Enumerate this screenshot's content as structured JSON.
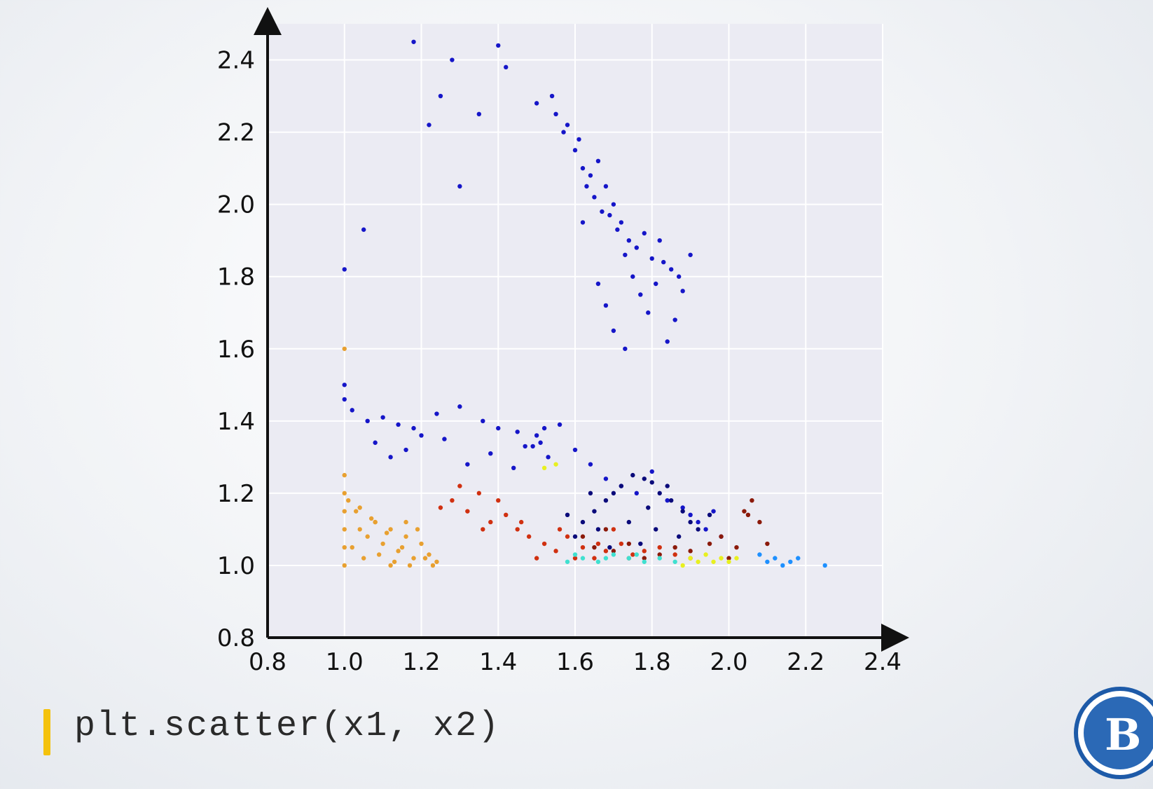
{
  "code_caption": "plt.scatter(x1, x2)",
  "colors": {
    "plot_background": "#ebebf3",
    "axis": "#111111",
    "code_accent": "#f4c20d",
    "logo_blue": "#2b69b6"
  },
  "icons": {
    "logo": "hse-logo-icon"
  },
  "chart_data": {
    "type": "scatter",
    "title": "",
    "xlabel": "",
    "ylabel": "",
    "xlim": [
      0.8,
      2.4
    ],
    "ylim": [
      0.8,
      2.5
    ],
    "xticks": [
      "0.8",
      "1.0",
      "1.2",
      "1.4",
      "1.6",
      "1.8",
      "2.0",
      "2.2",
      "2.4"
    ],
    "yticks": [
      "0.8",
      "1.0",
      "1.2",
      "1.4",
      "1.6",
      "1.8",
      "2.0",
      "2.2",
      "2.4"
    ],
    "grid": true,
    "legend": "none",
    "series": [
      {
        "color": "#1515c8",
        "x": [
          1.5,
          1.55,
          1.58,
          1.6,
          1.62,
          1.64,
          1.66,
          1.68,
          1.7,
          1.72,
          1.74,
          1.76,
          1.78,
          1.8,
          1.82,
          1.85,
          1.54,
          1.57,
          1.61,
          1.63,
          1.65,
          1.67,
          1.69,
          1.71,
          1.73,
          1.75,
          1.77,
          1.79,
          1.81,
          1.83,
          1.87,
          1.9,
          1.88,
          1.86,
          1.84,
          1.73,
          1.7,
          1.68,
          1.66,
          1.62,
          1.25,
          1.3,
          1.18,
          1.22,
          1.35,
          1.42,
          1.28,
          1.4,
          1.05,
          1.0,
          1.0,
          1.0,
          1.02,
          1.06,
          1.1,
          1.14,
          1.18,
          1.2,
          1.24,
          1.3,
          1.36,
          1.4,
          1.45,
          1.5,
          1.51,
          1.52,
          1.49,
          1.56,
          1.6,
          1.64,
          1.68,
          1.72,
          1.76,
          1.8,
          1.84,
          1.88,
          1.9,
          1.92,
          1.94,
          1.96,
          1.98,
          1.12,
          1.08,
          1.16,
          1.26,
          1.32,
          1.38,
          1.44,
          1.47,
          1.53
        ],
        "y": [
          2.28,
          2.25,
          2.22,
          2.15,
          2.1,
          2.08,
          2.12,
          2.05,
          2.0,
          1.95,
          1.9,
          1.88,
          1.92,
          1.85,
          1.9,
          1.82,
          2.3,
          2.2,
          2.18,
          2.05,
          2.02,
          1.98,
          1.97,
          1.93,
          1.86,
          1.8,
          1.75,
          1.7,
          1.78,
          1.84,
          1.8,
          1.86,
          1.76,
          1.68,
          1.62,
          1.6,
          1.65,
          1.72,
          1.78,
          1.95,
          2.3,
          2.05,
          2.45,
          2.22,
          2.25,
          2.38,
          2.4,
          2.44,
          1.93,
          1.82,
          1.5,
          1.46,
          1.43,
          1.4,
          1.41,
          1.39,
          1.38,
          1.36,
          1.42,
          1.44,
          1.4,
          1.38,
          1.37,
          1.36,
          1.34,
          1.38,
          1.33,
          1.39,
          1.32,
          1.28,
          1.24,
          1.22,
          1.2,
          1.26,
          1.18,
          1.16,
          1.14,
          1.12,
          1.1,
          1.15,
          1.08,
          1.3,
          1.34,
          1.32,
          1.35,
          1.28,
          1.31,
          1.27,
          1.33,
          1.3
        ]
      },
      {
        "color": "#0a0a7a",
        "x": [
          1.62,
          1.65,
          1.68,
          1.7,
          1.72,
          1.75,
          1.78,
          1.8,
          1.82,
          1.85,
          1.88,
          1.6,
          1.66,
          1.74,
          1.79,
          1.84,
          1.69,
          1.77,
          1.81,
          1.87,
          1.9,
          1.92,
          1.95,
          1.58,
          1.64
        ],
        "y": [
          1.12,
          1.15,
          1.18,
          1.2,
          1.22,
          1.25,
          1.24,
          1.23,
          1.2,
          1.18,
          1.15,
          1.08,
          1.1,
          1.12,
          1.16,
          1.22,
          1.05,
          1.06,
          1.1,
          1.08,
          1.12,
          1.1,
          1.14,
          1.14,
          1.2
        ]
      },
      {
        "color": "#d03010",
        "x": [
          1.25,
          1.28,
          1.32,
          1.35,
          1.38,
          1.42,
          1.45,
          1.48,
          1.52,
          1.55,
          1.58,
          1.62,
          1.65,
          1.68,
          1.72,
          1.75,
          1.3,
          1.36,
          1.4,
          1.46,
          1.5,
          1.56,
          1.6,
          1.66,
          1.7,
          1.74,
          1.78,
          1.82,
          1.86,
          1.9
        ],
        "y": [
          1.16,
          1.18,
          1.15,
          1.2,
          1.12,
          1.14,
          1.1,
          1.08,
          1.06,
          1.04,
          1.08,
          1.05,
          1.02,
          1.04,
          1.06,
          1.03,
          1.22,
          1.1,
          1.18,
          1.12,
          1.02,
          1.1,
          1.02,
          1.06,
          1.1,
          1.02,
          1.04,
          1.05,
          1.03,
          1.02
        ]
      },
      {
        "color": "#8b1a0a",
        "x": [
          1.62,
          1.65,
          1.68,
          1.7,
          1.74,
          1.78,
          1.82,
          1.86,
          1.9,
          1.95,
          1.98,
          2.02,
          2.05,
          2.08,
          2.1,
          2.04,
          2.06,
          2.0
        ],
        "y": [
          1.08,
          1.05,
          1.1,
          1.04,
          1.06,
          1.02,
          1.03,
          1.05,
          1.04,
          1.06,
          1.08,
          1.05,
          1.14,
          1.12,
          1.06,
          1.15,
          1.18,
          1.02
        ]
      },
      {
        "color": "#e8a030",
        "x": [
          1.0,
          1.0,
          1.0,
          1.0,
          1.0,
          1.0,
          1.0,
          1.02,
          1.04,
          1.06,
          1.08,
          1.1,
          1.12,
          1.14,
          1.16,
          1.18,
          1.2,
          1.22,
          1.24,
          1.03,
          1.07,
          1.11,
          1.15,
          1.19,
          1.05,
          1.09,
          1.13,
          1.17,
          1.21,
          1.23,
          1.01,
          1.04,
          1.08,
          1.12,
          1.16
        ],
        "y": [
          1.0,
          1.05,
          1.1,
          1.15,
          1.2,
          1.25,
          1.6,
          1.05,
          1.1,
          1.08,
          1.12,
          1.06,
          1.1,
          1.04,
          1.08,
          1.02,
          1.06,
          1.03,
          1.01,
          1.15,
          1.13,
          1.09,
          1.05,
          1.1,
          1.02,
          1.03,
          1.01,
          1.0,
          1.02,
          1.0,
          1.18,
          1.16,
          1.12,
          1.0,
          1.12
        ]
      },
      {
        "color": "#40e0d0",
        "x": [
          1.58,
          1.62,
          1.66,
          1.7,
          1.74,
          1.78,
          1.82,
          1.86,
          1.6,
          1.68,
          1.76
        ],
        "y": [
          1.01,
          1.02,
          1.01,
          1.03,
          1.02,
          1.01,
          1.02,
          1.01,
          1.03,
          1.02,
          1.03
        ]
      },
      {
        "color": "#e8f020",
        "x": [
          1.52,
          1.55,
          1.9,
          1.92,
          1.94,
          1.96,
          1.98,
          2.0,
          2.02,
          1.88
        ],
        "y": [
          1.27,
          1.28,
          1.02,
          1.01,
          1.03,
          1.01,
          1.02,
          1.01,
          1.02,
          1.0
        ]
      },
      {
        "color": "#1e90ff",
        "x": [
          2.1,
          2.12,
          2.14,
          2.16,
          2.18,
          2.08,
          2.25
        ],
        "y": [
          1.01,
          1.02,
          1.0,
          1.01,
          1.02,
          1.03,
          1.0
        ]
      }
    ]
  }
}
